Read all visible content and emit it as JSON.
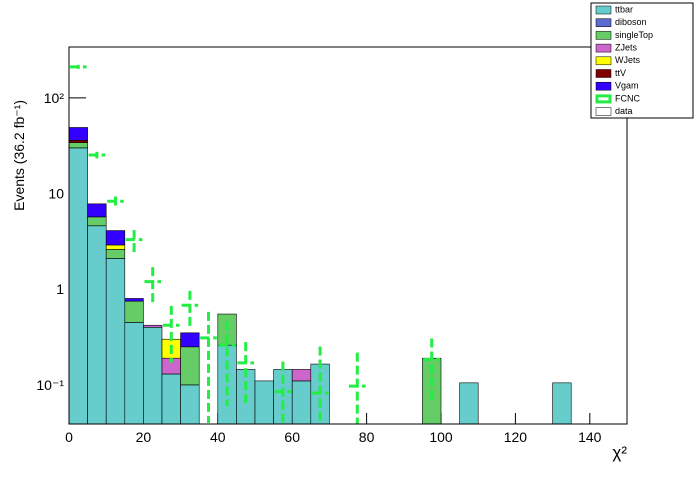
{
  "chart_data": {
    "type": "stacked_histogram",
    "y_label": "Events (36.2 fb⁻¹)",
    "x_label": "χ²",
    "xlim": [
      0,
      150
    ],
    "ylim": [
      0.039,
      340
    ],
    "log_y": true,
    "xticks": [
      0,
      20,
      40,
      60,
      80,
      100,
      120,
      140
    ],
    "yticks": [
      {
        "value": 0.1,
        "label": "10⁻¹"
      },
      1,
      10,
      {
        "value": 100,
        "label": "10²"
      }
    ],
    "bins": [
      0,
      5,
      10,
      15,
      20,
      25,
      30,
      35,
      40,
      45,
      50,
      55,
      60,
      65,
      70,
      75,
      80,
      85,
      90,
      95,
      100,
      105,
      110,
      115,
      120,
      125,
      130,
      135,
      140,
      145,
      150
    ],
    "series": [
      {
        "name": "ttbar",
        "color": "#66cccc",
        "values": [
          30,
          4.6,
          2.1,
          0.45,
          0.4,
          0.13,
          0.1,
          0,
          0.26,
          0.145,
          0.11,
          0.145,
          0.11,
          0.165,
          0,
          0,
          0,
          0,
          0,
          0,
          0,
          0.105,
          0,
          0,
          0,
          0,
          0.105,
          0,
          0,
          0
        ]
      },
      {
        "name": "diboson",
        "color": "#5c6bd0",
        "values": [
          0,
          0,
          0,
          0,
          0,
          0,
          0,
          0,
          0,
          0,
          0,
          0,
          0,
          0,
          0,
          0,
          0,
          0,
          0,
          0,
          0,
          0,
          0,
          0,
          0,
          0,
          0,
          0,
          0,
          0
        ]
      },
      {
        "name": "singleTop",
        "color": "#66cc66",
        "values": [
          4,
          1.1,
          0.5,
          0.3,
          0,
          0,
          0.15,
          0,
          0.29,
          0,
          0,
          0,
          0,
          0,
          0,
          0,
          0,
          0,
          0,
          0.19,
          0,
          0,
          0,
          0,
          0,
          0,
          0,
          0,
          0,
          0
        ]
      },
      {
        "name": "ZJets",
        "color": "#cc66cc",
        "values": [
          0,
          0,
          0,
          0,
          0.02,
          0.06,
          0,
          0,
          0,
          0,
          0,
          0,
          0.035,
          0,
          0,
          0,
          0,
          0,
          0,
          0,
          0,
          0,
          0,
          0,
          0,
          0,
          0,
          0,
          0,
          0
        ]
      },
      {
        "name": "WJets",
        "color": "#ffff00",
        "values": [
          0,
          0,
          0.3,
          0,
          0,
          0.11,
          0,
          0,
          0,
          0,
          0,
          0,
          0,
          0,
          0,
          0,
          0,
          0,
          0,
          0,
          0,
          0,
          0,
          0,
          0,
          0,
          0,
          0,
          0,
          0
        ]
      },
      {
        "name": "ttV",
        "color": "#800000",
        "values": [
          2,
          0,
          0,
          0,
          0,
          0,
          0,
          0,
          0,
          0,
          0,
          0,
          0,
          0,
          0,
          0,
          0,
          0,
          0,
          0,
          0,
          0,
          0,
          0,
          0,
          0,
          0,
          0,
          0,
          0
        ]
      },
      {
        "name": "Vgam",
        "color": "#3300ff",
        "values": [
          13,
          2.1,
          1.2,
          0.05,
          0,
          0,
          0.1,
          0,
          0,
          0,
          0,
          0,
          0,
          0,
          0,
          0,
          0,
          0,
          0,
          0,
          0,
          0,
          0,
          0,
          0,
          0,
          0,
          0,
          0,
          0
        ]
      }
    ],
    "signal": {
      "name": "FCNC",
      "color": "#22ee44",
      "values": [
        211,
        25.3,
        8.3,
        3.3,
        1.2,
        0.42,
        0.68,
        0.31,
        0.26,
        0.17,
        null,
        0.085,
        null,
        0.082,
        null,
        0.097,
        null,
        null,
        null,
        0.185,
        null,
        null,
        null,
        null,
        null,
        null,
        null,
        null,
        null,
        null
      ],
      "errors": [
        10,
        2,
        1,
        0.85,
        0.5,
        0.25,
        0.28,
        0.27,
        0.2,
        0.11,
        null,
        0.09,
        null,
        0.17,
        null,
        0.12,
        null,
        null,
        null,
        0.12,
        null,
        null,
        null,
        null,
        null,
        null,
        null,
        null,
        null,
        null
      ]
    },
    "data_series": {
      "name": "data",
      "color": "#ffffff"
    }
  }
}
